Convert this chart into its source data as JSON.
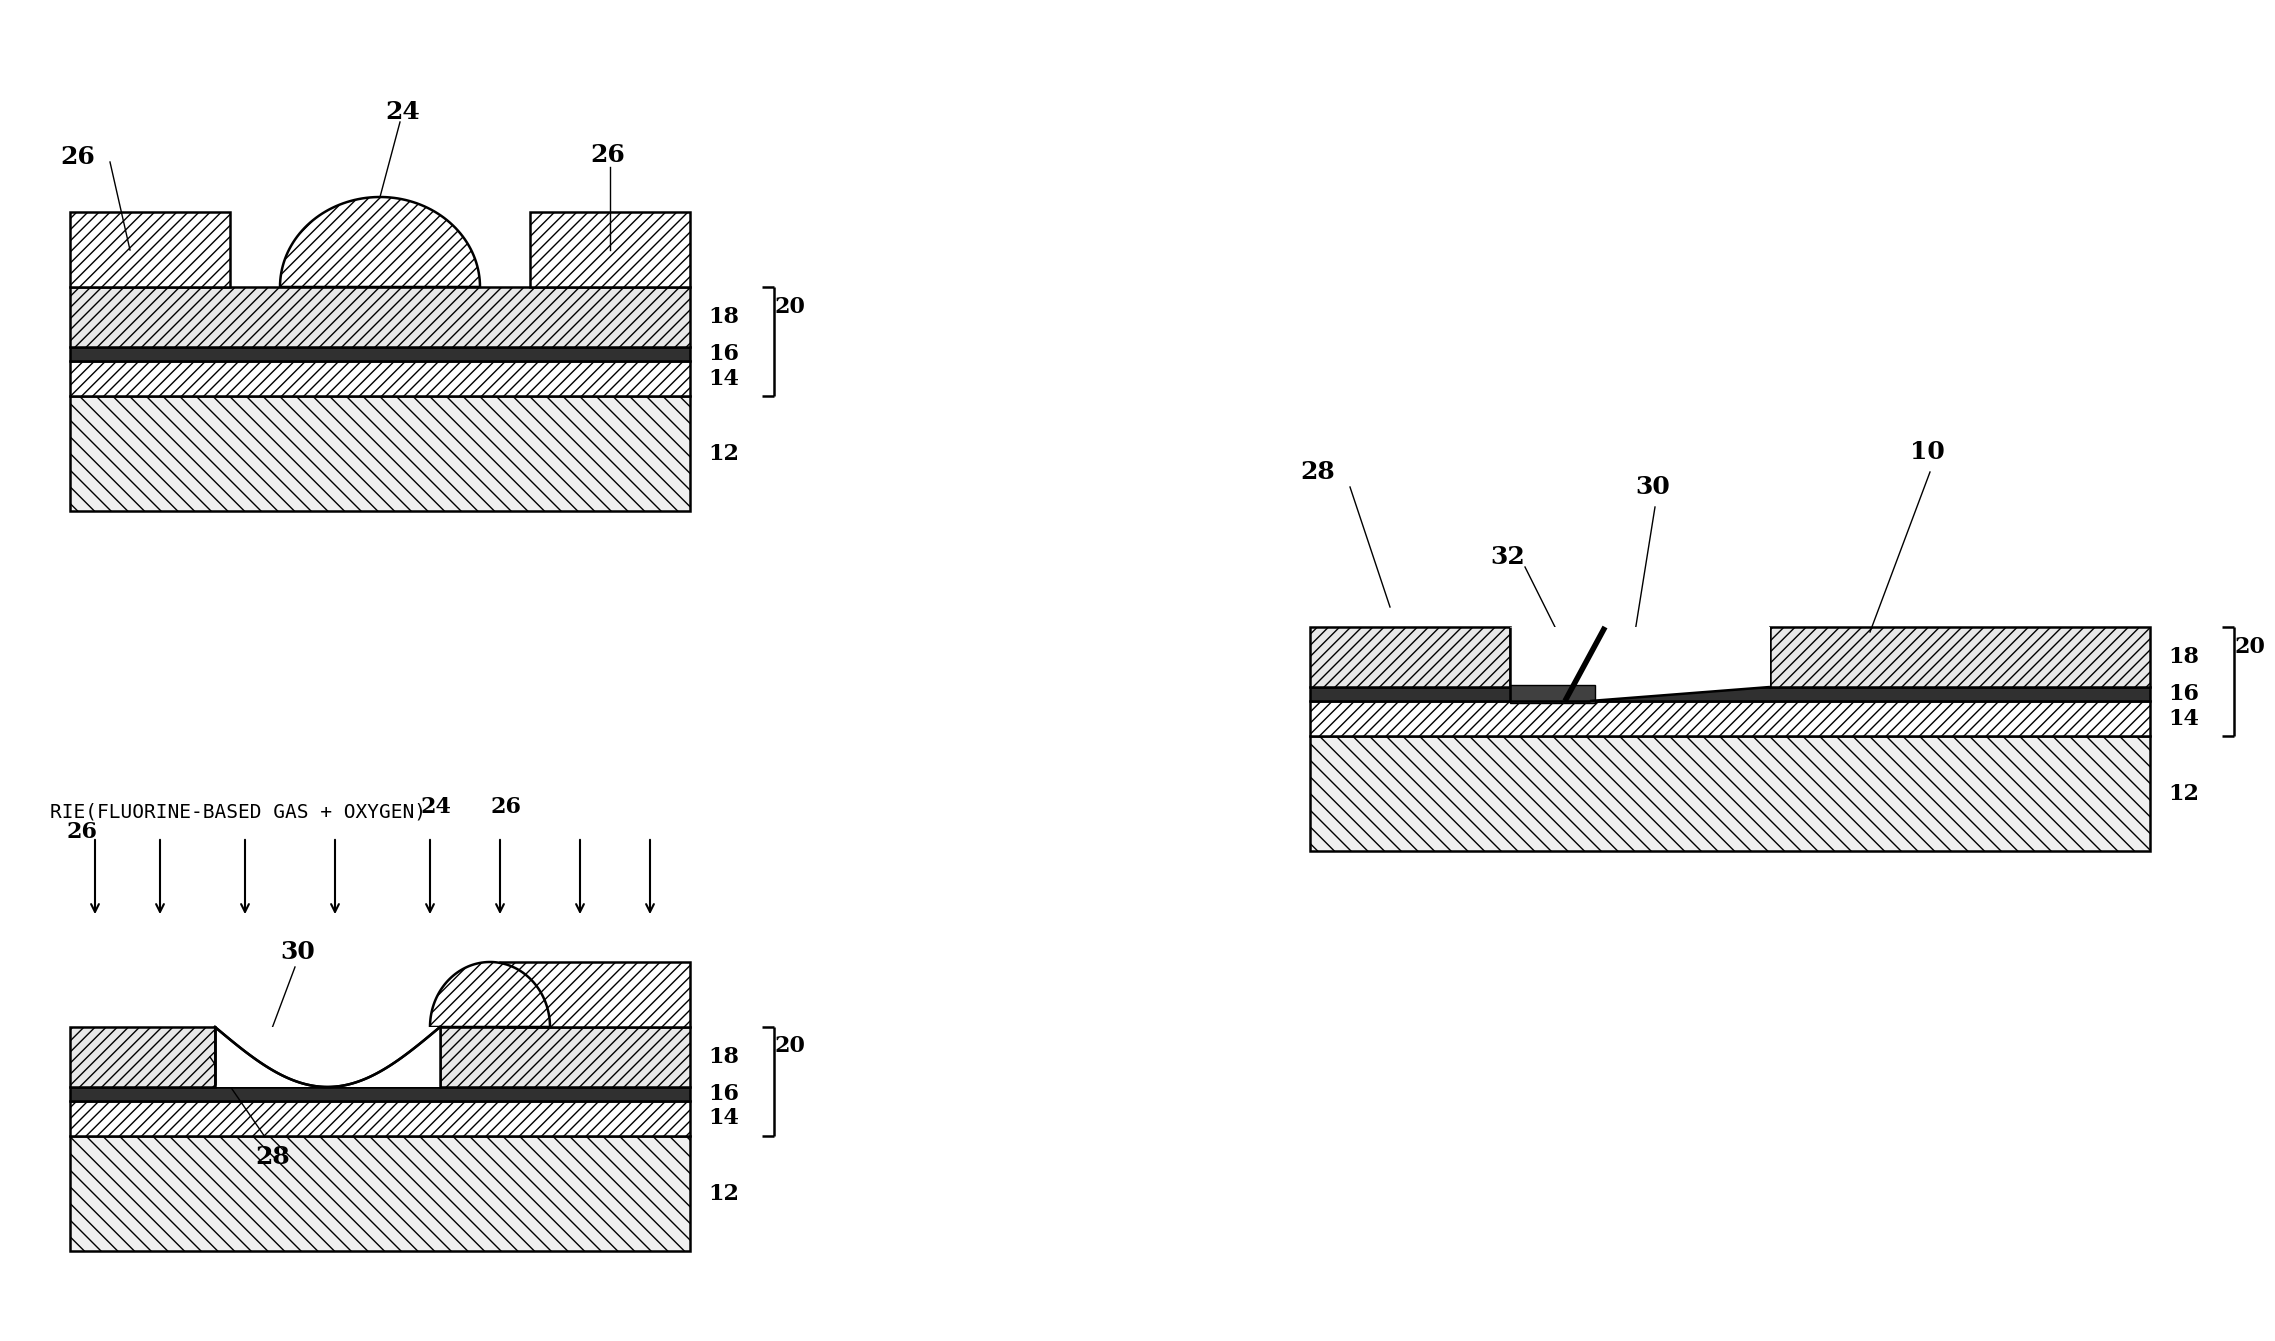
{
  "bg_color": "#ffffff",
  "line_color": "#000000",
  "label_fontsize": 18,
  "title_fontsize": 14,
  "lw": 1.8
}
